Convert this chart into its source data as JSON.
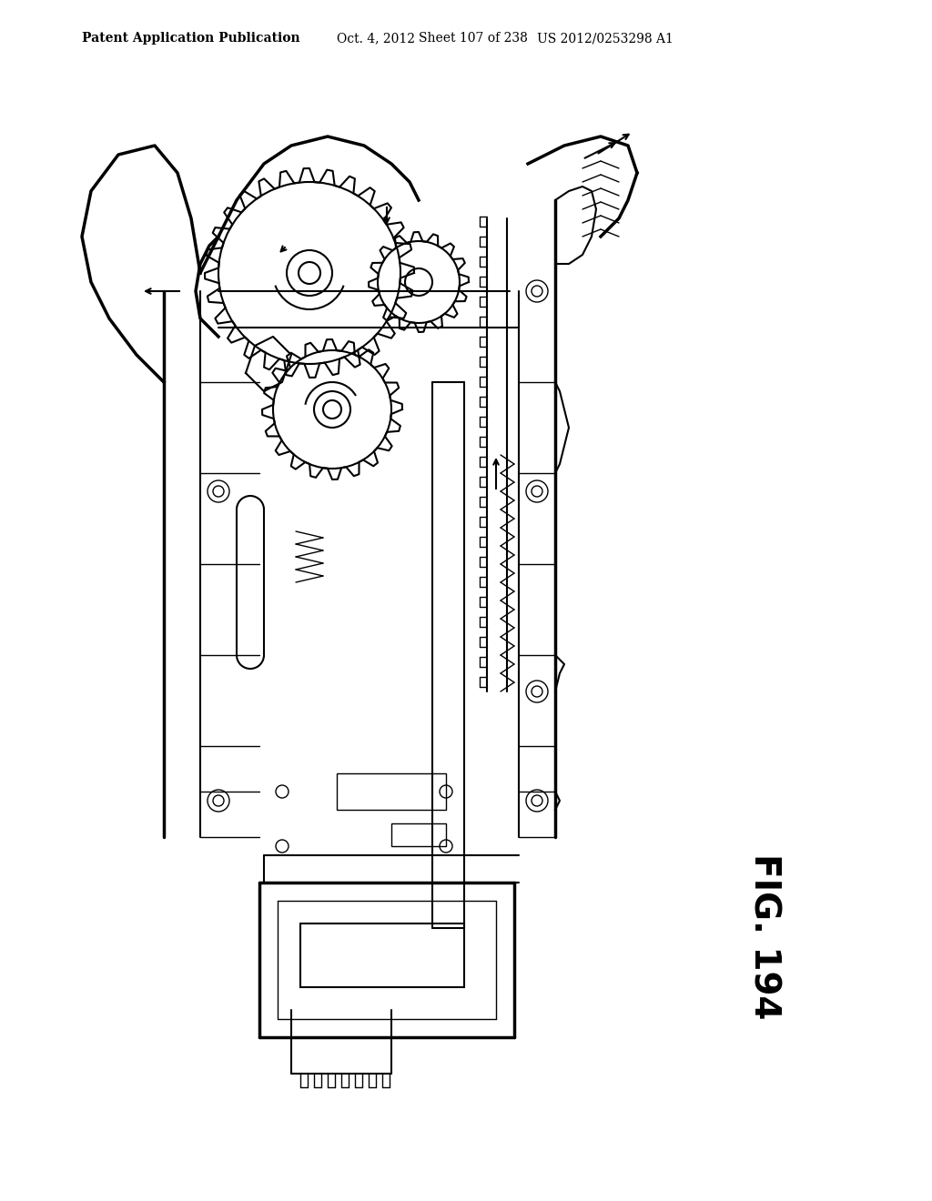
{
  "title": "Patent Application Publication",
  "date": "Oct. 4, 2012",
  "sheet": "Sheet 107 of 238",
  "patent_num": "US 2012/0253298 A1",
  "fig_label": "FIG. 194",
  "background_color": "#ffffff",
  "line_color": "#000000",
  "header_fontsize": 10,
  "fig_label_fontsize": 28
}
